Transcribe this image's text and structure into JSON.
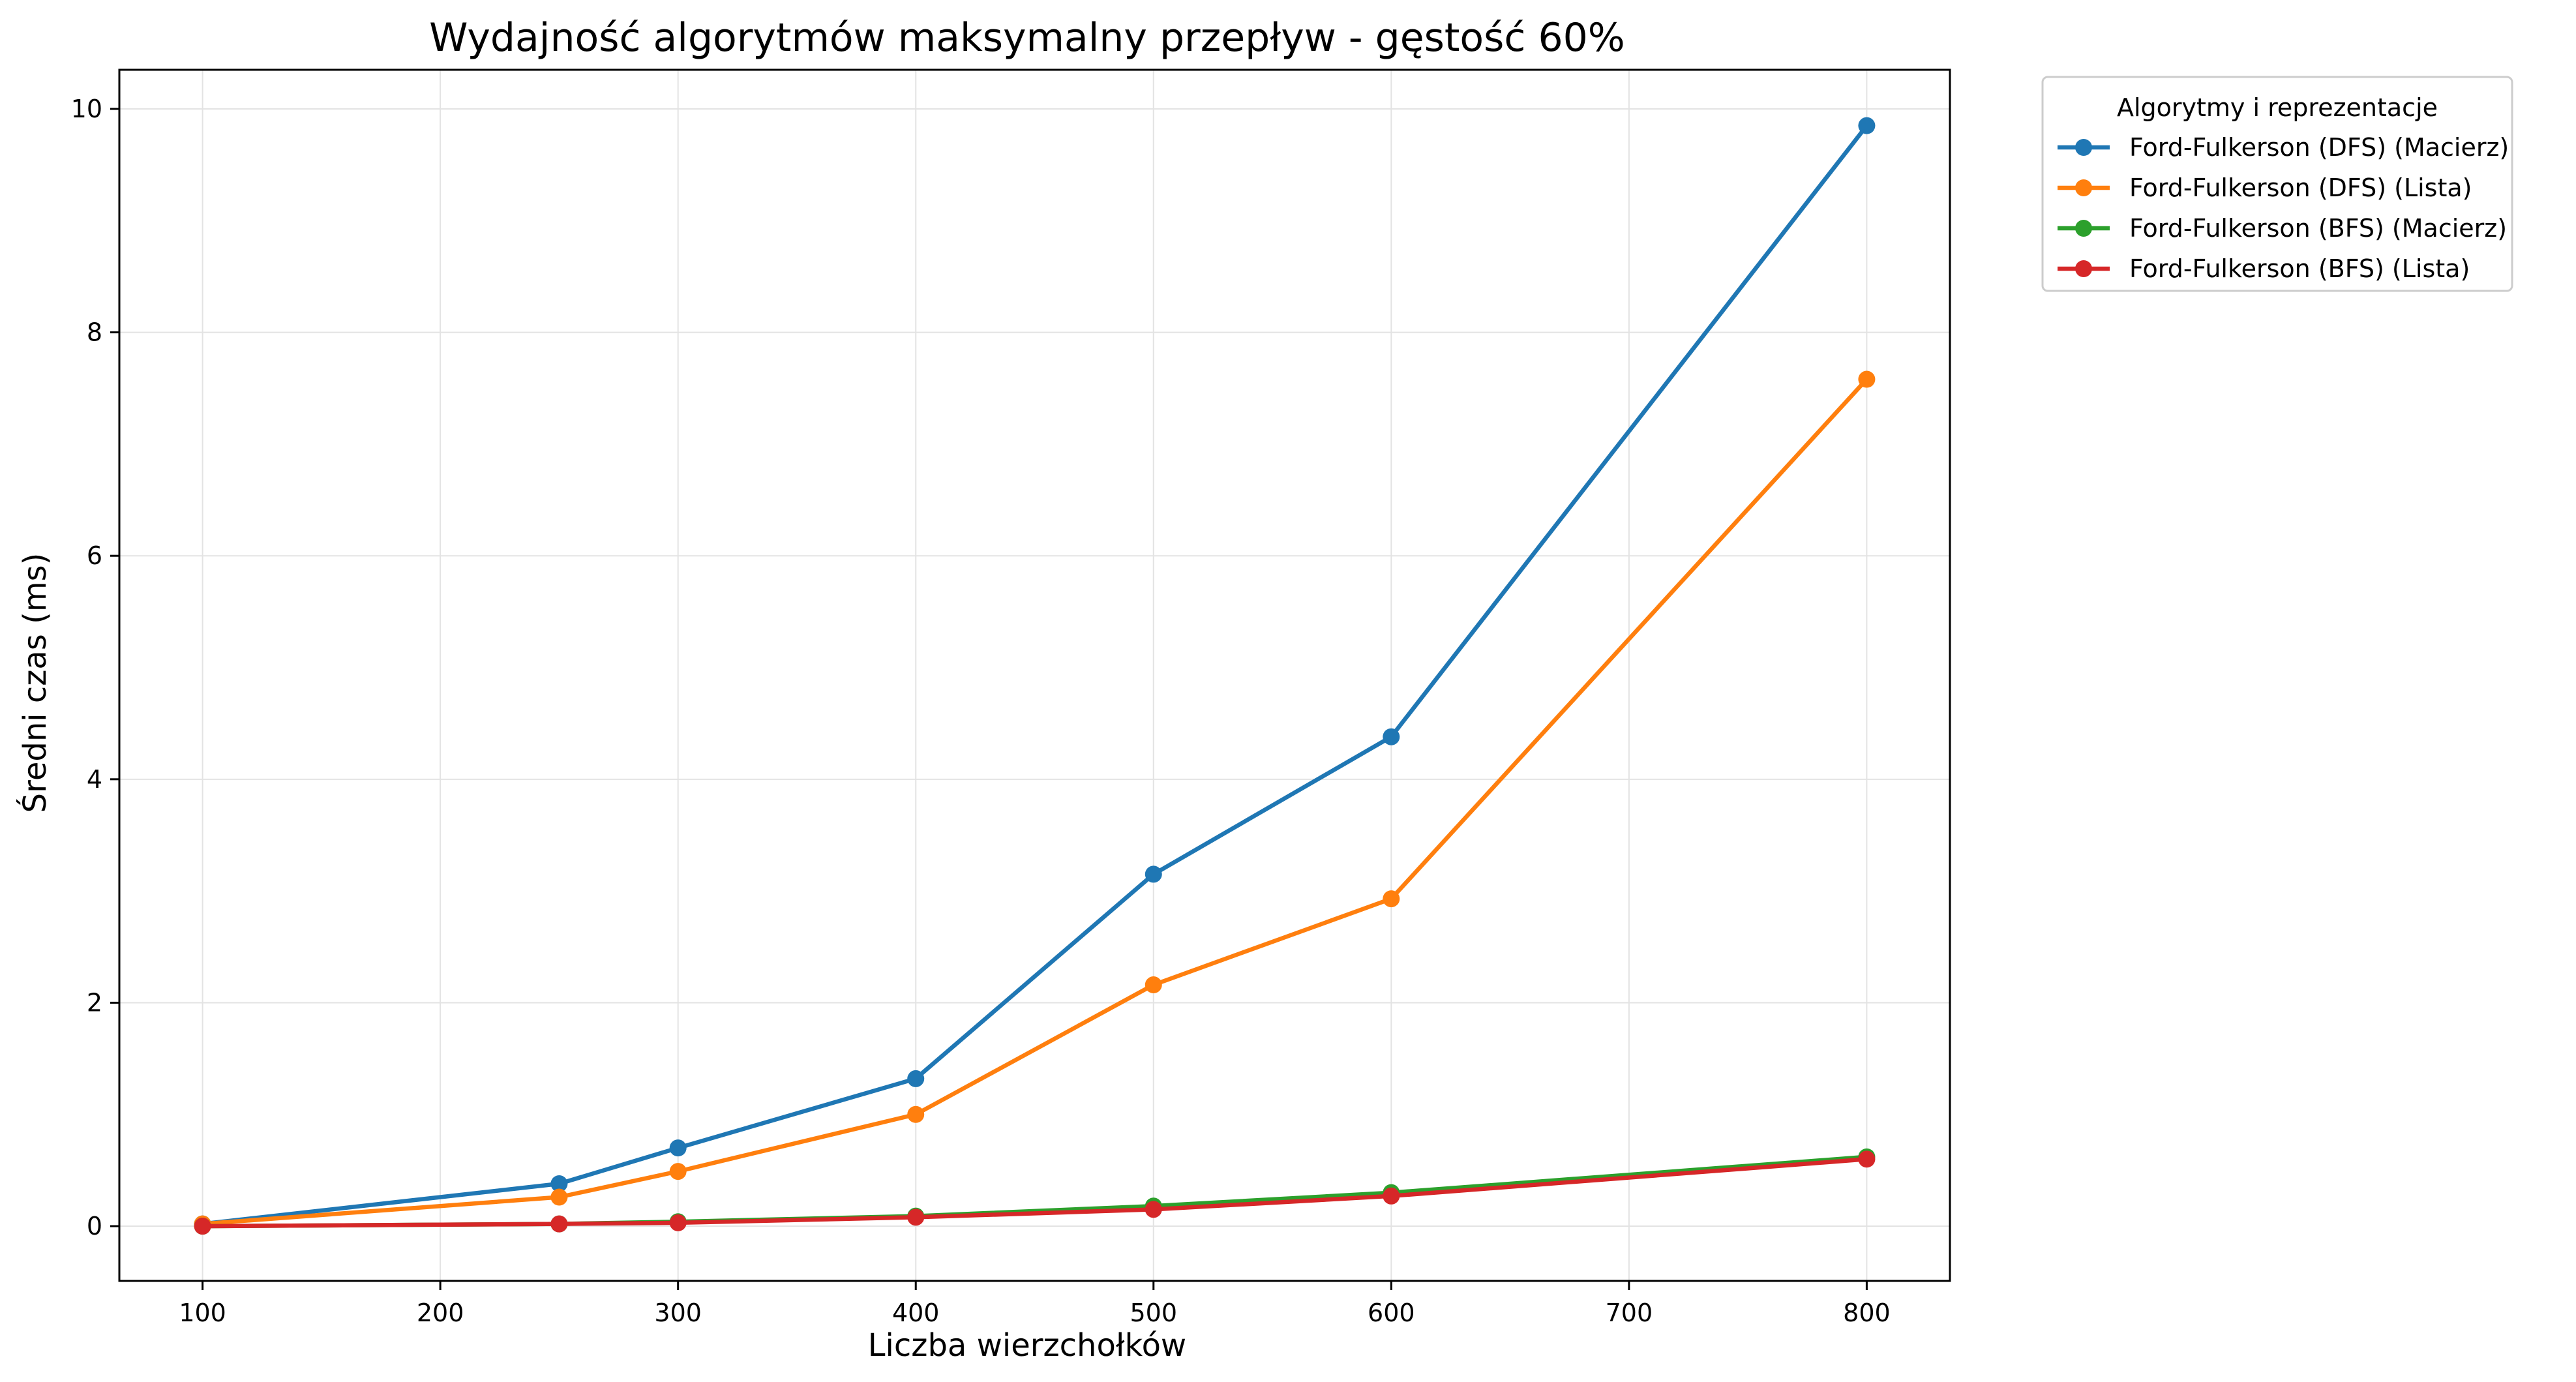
{
  "chart_data": {
    "type": "line",
    "title": "Wydajność algorytmów maksymalny przepływ - gęstość 60%",
    "xlabel": "Liczba wierzchołków",
    "ylabel": "Średni czas (ms)",
    "xlim": [
      65,
      835
    ],
    "ylim": [
      -0.49,
      10.35
    ],
    "xticks": [
      100,
      200,
      300,
      400,
      500,
      600,
      700,
      800
    ],
    "yticks": [
      0,
      2,
      4,
      6,
      8,
      10
    ],
    "grid": true,
    "legend": {
      "title": "Algorytmy i reprezentacje",
      "placement": "outside-top-right"
    },
    "x": [
      100,
      250,
      300,
      400,
      500,
      600,
      800
    ],
    "series": [
      {
        "name": "Ford-Fulkerson (DFS) (Macierz)",
        "color": "#1f77b4",
        "values": [
          0.02,
          0.38,
          0.7,
          1.32,
          3.15,
          4.38,
          9.85
        ]
      },
      {
        "name": "Ford-Fulkerson (DFS) (Lista)",
        "color": "#ff7f0e",
        "values": [
          0.02,
          0.26,
          0.49,
          1.0,
          2.16,
          2.93,
          7.58
        ]
      },
      {
        "name": "Ford-Fulkerson (BFS) (Macierz)",
        "color": "#2ca02c",
        "values": [
          0.0,
          0.02,
          0.04,
          0.09,
          0.18,
          0.3,
          0.62
        ]
      },
      {
        "name": "Ford-Fulkerson (BFS) (Lista)",
        "color": "#d62728",
        "values": [
          0.0,
          0.02,
          0.03,
          0.08,
          0.15,
          0.27,
          0.6
        ]
      }
    ]
  }
}
